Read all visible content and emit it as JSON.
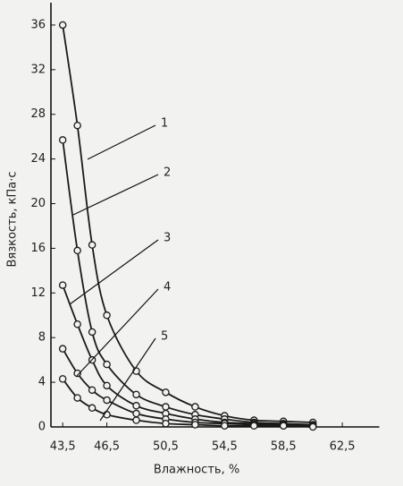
{
  "chart_data": {
    "type": "line",
    "y_label": "Вязкость, кПа·с",
    "x_label": "Влажность, %",
    "x": [
      43.5,
      44.5,
      45.5,
      46.5,
      48.5,
      50.5,
      52.5,
      54.5,
      56.5,
      58.5,
      60.5
    ],
    "series": [
      {
        "name": "1",
        "color": "#1a1a1a",
        "values": [
          36,
          27,
          16.3,
          10,
          5,
          3.1,
          1.8,
          1.0,
          0.6,
          0.5,
          0.4
        ]
      },
      {
        "name": "2",
        "color": "#1a1a1a",
        "values": [
          25.7,
          15.8,
          8.5,
          5.6,
          2.9,
          1.8,
          1.1,
          0.7,
          0.4,
          0.3,
          0.2
        ]
      },
      {
        "name": "3",
        "color": "#1a1a1a",
        "values": [
          12.7,
          9.2,
          6.0,
          3.7,
          1.9,
          1.2,
          0.7,
          0.4,
          0.3,
          0.2,
          0.1
        ]
      },
      {
        "name": "4",
        "color": "#1a1a1a",
        "values": [
          7.0,
          4.8,
          3.3,
          2.4,
          1.2,
          0.7,
          0.4,
          0.3,
          0.2,
          0.1,
          0.1
        ]
      },
      {
        "name": "5",
        "color": "#1a1a1a",
        "values": [
          4.3,
          2.6,
          1.7,
          1.1,
          0.6,
          0.3,
          0.2,
          0.1,
          0.1,
          0.1,
          0.0
        ]
      }
    ],
    "xlim": [
      42.7,
      65.5
    ],
    "ylim": [
      0,
      38
    ],
    "xticks": [
      {
        "value": 43.5,
        "label": "43,5"
      },
      {
        "value": 46.5,
        "label": "46,5"
      },
      {
        "value": 50.5,
        "label": "50,5"
      },
      {
        "value": 54.5,
        "label": "54,5"
      },
      {
        "value": 58.5,
        "label": "58,5"
      },
      {
        "value": 62.5,
        "label": "62,5"
      }
    ],
    "yticks": [
      0,
      4,
      8,
      12,
      16,
      20,
      24,
      28,
      32,
      36
    ],
    "grid": false
  }
}
